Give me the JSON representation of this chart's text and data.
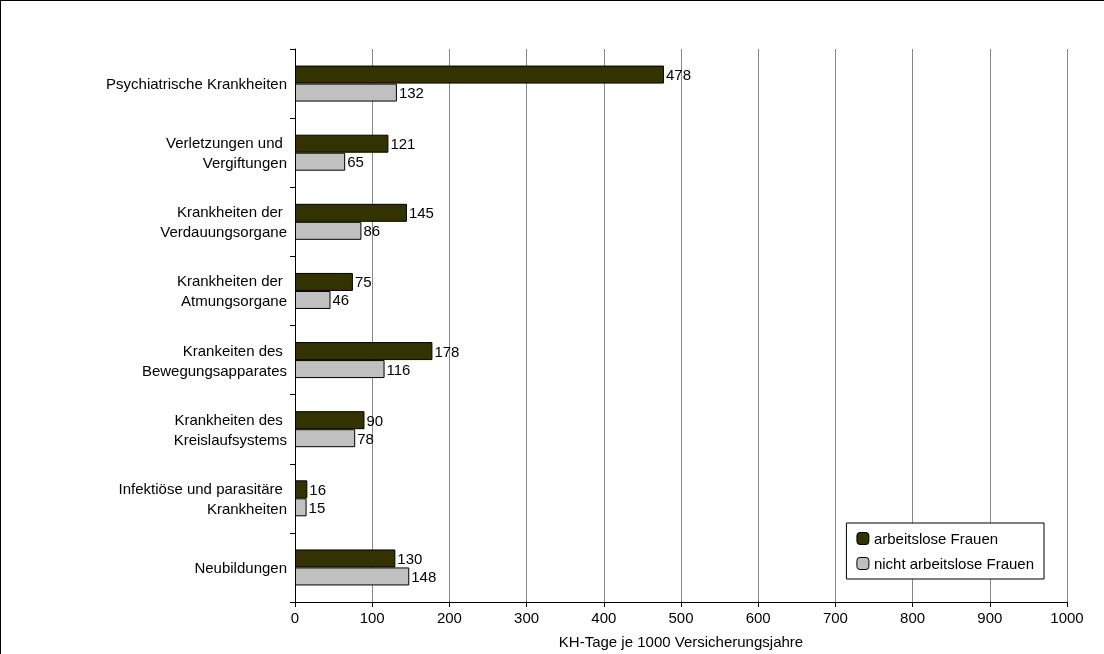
{
  "chart_data": {
    "type": "bar",
    "orientation": "horizontal",
    "xlabel": "KH-Tage je 1000 Versicherungsjahre",
    "categories": [
      "Psychiatrische Krankheiten",
      "Verletzungen und Vergiftungen",
      "Krankheiten der Verdauungsorgane",
      "Krankheiten der Atmungsorgane",
      "Krankeiten des Bewegungsapparates",
      "Krankheiten des Kreislaufsystems",
      "Infektiöse und parasitäre Krankheiten",
      "Neubildungen"
    ],
    "series": [
      {
        "name": "arbeitslose Frauen",
        "color": "#333300",
        "values": [
          478,
          121,
          145,
          75,
          178,
          90,
          16,
          130
        ]
      },
      {
        "name": "nicht arbeitslose Frauen",
        "color": "#c0c0c0",
        "values": [
          132,
          65,
          86,
          46,
          116,
          78,
          15,
          148
        ]
      }
    ],
    "xlim": [
      0,
      1000
    ],
    "xticks": [
      0,
      100,
      200,
      300,
      400,
      500,
      600,
      700,
      800,
      900,
      1000
    ],
    "grid": "x",
    "legend": "bottom right",
    "data_labels": true
  }
}
